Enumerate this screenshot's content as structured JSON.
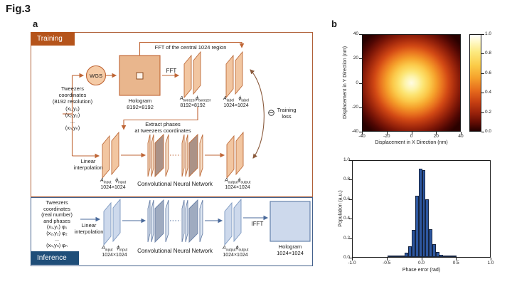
{
  "figure": {
    "title": "Fig.3",
    "panel_a_label": "a",
    "panel_b_label": "b"
  },
  "colors": {
    "training_tag": "#b5541b",
    "training_line": "#bf6535",
    "training_fill": "#f2c6a1",
    "training_slab_gray": "#ab9287",
    "hologram_fill": "#e9b68d",
    "inference_tag": "#1f4e79",
    "inference_line": "#4a6a9b",
    "inference_fill": "#cdd9ec",
    "inference_slab_gray": "#9fabc0",
    "loss_arc": "#8a5a3c",
    "histogram_bar": "#2d57a0",
    "heatmap_colormap": "hot"
  },
  "panel_a": {
    "training": {
      "tag": "Training",
      "tweezers_block": "Tweezers\ncoordinates\n(8192 resolution)\n(x₁,y₁)\n(x₂,y₂)\n...\n(xₙ,yₙ)",
      "wgs": "WGS",
      "hologram_label": "Hologram\n8192×8192",
      "fft_region": "FFT of the central 1024 region",
      "fft": "FFT",
      "extract_phases": "Extract phases\nat tweezers coordinates",
      "linear_interpolation": "Linear\ninterpolation",
      "cnn": "Convolutional Neural Network",
      "training_loss": "Training\nloss"
    },
    "inference": {
      "tag": "Inference",
      "tweezers_block": "Tweezers\ncoordinates\n(real number)\nand phases\n(x₁,y₁) φ₁\n(x₂,y₂) φ₂\n...\n(xₙ,yₙ) φₙ",
      "linear_interpolation": "Linear\ninterpolation",
      "cnn": "Convolutional Neural Network",
      "ifft": "IFFT",
      "hologram_label": "Hologram\n1024×1024"
    },
    "stacks": {
      "tweezer": {
        "amp_base": "A",
        "amp_sub": "tweezer",
        "phase_base": "ϕ",
        "phase_sub": "tweezer",
        "size": "8192×8192"
      },
      "label": {
        "amp_base": "A",
        "amp_sub": "label",
        "phase_base": "ϕ",
        "phase_sub": "label",
        "size": "1024×1024"
      },
      "input": {
        "amp_base": "A",
        "amp_sub": "input",
        "phase_base": "ϕ",
        "phase_sub": "input",
        "size": "1024×1024"
      },
      "output": {
        "amp_base": "A",
        "amp_sub": "output",
        "phase_base": "ϕ",
        "phase_sub": "output",
        "size": "1024×1024"
      }
    }
  },
  "chart_data": [
    {
      "type": "heatmap",
      "title": "",
      "xlabel": "Displacement in X Direction (nm)",
      "ylabel": "Displacement in Y Direction (nm)",
      "xlim": [
        -40,
        40
      ],
      "ylim": [
        -40,
        40
      ],
      "xticks": [
        "-40",
        "-20",
        "0",
        "20",
        "40"
      ],
      "yticks": [
        "40",
        "20",
        "0",
        "-20",
        "-40"
      ],
      "colorbar": {
        "ticks": [
          "1.0",
          "0.8",
          "0.6",
          "0.4",
          "0.2",
          "0.0"
        ],
        "range": [
          0,
          1
        ]
      },
      "colormap": "hot",
      "gaussian": {
        "center_x": 0,
        "center_y": 0,
        "peak": 1.0,
        "sigma_nm": 17
      },
      "description": "2D Gaussian-like intensity spot centered at (0,0) nm, peak value 1.0, fading to ~0 at 40 nm displacement"
    },
    {
      "type": "bar",
      "title": "",
      "xlabel": "Phase error (rad)",
      "ylabel": "Population (a.u.)",
      "xlim": [
        -1.0,
        1.0
      ],
      "ylim": [
        0.0,
        1.0
      ],
      "xticks": [
        "-1.0",
        "-0.5",
        "0.0",
        "0.5",
        "1.0"
      ],
      "yticks": [
        "1.0",
        "0.8",
        "0.6",
        "0.4",
        "0.2",
        "0.0"
      ],
      "bin_width": 0.05,
      "bin_starts": [
        -0.5,
        -0.45,
        -0.4,
        -0.35,
        -0.3,
        -0.25,
        -0.2,
        -0.15,
        -0.1,
        -0.05,
        0.0,
        0.05,
        0.1,
        0.15,
        0.2,
        0.25,
        0.3,
        0.35,
        0.4,
        0.45
      ],
      "values": [
        0.002,
        0.003,
        0.004,
        0.008,
        0.017,
        0.041,
        0.11,
        0.28,
        0.634,
        0.92,
        0.907,
        0.6,
        0.29,
        0.13,
        0.049,
        0.022,
        0.012,
        0.006,
        0.003,
        0.002
      ]
    }
  ]
}
